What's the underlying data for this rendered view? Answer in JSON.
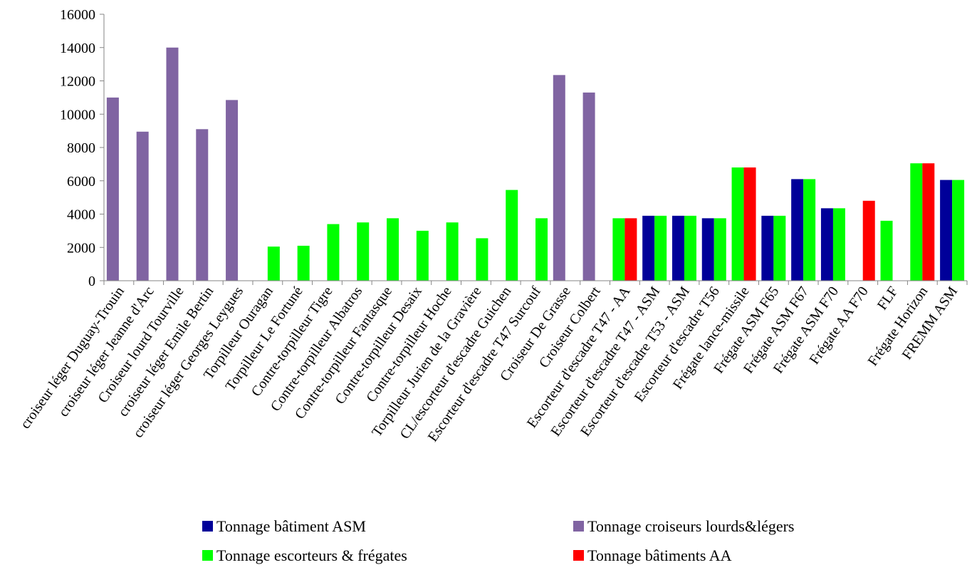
{
  "chart_data": {
    "type": "bar",
    "title": "",
    "xlabel": "",
    "ylabel": "",
    "ylim": [
      0,
      16000
    ],
    "yticks": [
      0,
      2000,
      4000,
      6000,
      8000,
      10000,
      12000,
      14000,
      16000
    ],
    "grid": false,
    "legend_position": "bottom",
    "categories": [
      "croiseur léger Duguay-Trouin",
      "croiseur léger Jeanne d'Arc",
      "Croiseur lourd Tourville",
      "croiseur léger Emile Bertin",
      "croiseur léger Georges Leygues",
      "Torpilleur Ouragan",
      "Torpilleur Le Fortuné",
      "Contre-torpilleur Tigre",
      "Contre-torpilleur Albatros",
      "Contre-torpilleur Fantasque",
      "Contre-torpilleur Desaix",
      "Contre-torpilleur Hoche",
      "Torpilleur Jurien de la Gravière",
      "CL/escorteur d'escadre Guichen",
      "Escorteur d'escadre T47 Surcouf",
      "Croiseur De Grasse",
      "Croiseur Colbert",
      "Escorteur d'escadre T47 - AA",
      "Escorteur d'escadre T47 - ASM",
      "Escorteur d'escadre T53 - ASM",
      "Escorteur d'escadre T56",
      "Frégate lance-missile",
      "Frégate ASM F65",
      "Frégate ASM F67",
      "Frégate ASM F70",
      "Frégate AA F70",
      "FLF",
      "Frégate Horizon",
      "FREMM ASM"
    ],
    "series": [
      {
        "name": "Tonnage croiseurs lourds&légers",
        "color": "#8064A2",
        "values": [
          11000,
          8950,
          14000,
          9100,
          10850,
          null,
          null,
          null,
          null,
          null,
          null,
          null,
          null,
          null,
          null,
          12350,
          11300,
          null,
          null,
          null,
          null,
          null,
          null,
          null,
          null,
          null,
          null,
          null,
          null
        ]
      },
      {
        "name": "Tonnage escorteurs & frégates",
        "color": "#00FF00",
        "values": [
          null,
          null,
          null,
          null,
          null,
          2050,
          2100,
          3400,
          3500,
          3750,
          3000,
          3500,
          2550,
          5450,
          3750,
          null,
          null,
          3750,
          3900,
          3900,
          3750,
          6800,
          3900,
          6100,
          4350,
          null,
          3600,
          7050,
          6050
        ]
      },
      {
        "name": "Tonnage bâtiments AA",
        "color": "#FF0000",
        "values": [
          null,
          null,
          null,
          null,
          null,
          null,
          null,
          null,
          null,
          null,
          null,
          null,
          null,
          null,
          null,
          null,
          null,
          3750,
          null,
          null,
          null,
          6800,
          null,
          null,
          null,
          4800,
          null,
          7050,
          null
        ]
      },
      {
        "name": "Tonnage bâtiment ASM",
        "color": "#000099",
        "values": [
          null,
          null,
          null,
          null,
          null,
          null,
          null,
          null,
          null,
          null,
          null,
          null,
          null,
          null,
          null,
          null,
          null,
          null,
          3900,
          3900,
          3750,
          null,
          3900,
          6100,
          4350,
          null,
          null,
          null,
          6050
        ]
      }
    ],
    "slot_order": [
      [
        "Tonnage croiseurs lourds&légers",
        "Tonnage escorteurs & frégates"
      ],
      [
        "Tonnage croiseurs lourds&légers",
        "Tonnage escorteurs & frégates"
      ],
      [
        "Tonnage croiseurs lourds&légers",
        "Tonnage escorteurs & frégates"
      ],
      [
        "Tonnage croiseurs lourds&légers",
        "Tonnage escorteurs & frégates"
      ],
      [
        "Tonnage croiseurs lourds&légers",
        "Tonnage escorteurs & frégates"
      ],
      [
        "Tonnage croiseurs lourds&légers",
        "Tonnage escorteurs & frégates"
      ],
      [
        "Tonnage croiseurs lourds&légers",
        "Tonnage escorteurs & frégates"
      ],
      [
        "Tonnage croiseurs lourds&légers",
        "Tonnage escorteurs & frégates"
      ],
      [
        "Tonnage croiseurs lourds&légers",
        "Tonnage escorteurs & frégates"
      ],
      [
        "Tonnage croiseurs lourds&légers",
        "Tonnage escorteurs & frégates"
      ],
      [
        "Tonnage croiseurs lourds&légers",
        "Tonnage escorteurs & frégates"
      ],
      [
        "Tonnage croiseurs lourds&légers",
        "Tonnage escorteurs & frégates"
      ],
      [
        "Tonnage croiseurs lourds&légers",
        "Tonnage escorteurs & frégates"
      ],
      [
        "Tonnage croiseurs lourds&légers",
        "Tonnage escorteurs & frégates"
      ],
      [
        "Tonnage croiseurs lourds&légers",
        "Tonnage escorteurs & frégates"
      ],
      [
        "Tonnage croiseurs lourds&légers",
        "Tonnage escorteurs & frégates"
      ],
      [
        "Tonnage croiseurs lourds&légers",
        "Tonnage escorteurs & frégates"
      ],
      [
        "Tonnage escorteurs & frégates",
        "Tonnage bâtiments AA"
      ],
      [
        "Tonnage bâtiment ASM",
        "Tonnage escorteurs & frégates"
      ],
      [
        "Tonnage bâtiment ASM",
        "Tonnage escorteurs & frégates"
      ],
      [
        "Tonnage bâtiment ASM",
        "Tonnage escorteurs & frégates"
      ],
      [
        "Tonnage escorteurs & frégates",
        "Tonnage bâtiments AA"
      ],
      [
        "Tonnage bâtiment ASM",
        "Tonnage escorteurs & frégates"
      ],
      [
        "Tonnage bâtiment ASM",
        "Tonnage escorteurs & frégates"
      ],
      [
        "Tonnage bâtiment ASM",
        "Tonnage escorteurs & frégates"
      ],
      [
        "Tonnage escorteurs & frégates",
        "Tonnage bâtiments AA"
      ],
      [
        "Tonnage escorteurs & frégates",
        "Tonnage bâtiments AA"
      ],
      [
        "Tonnage escorteurs & frégates",
        "Tonnage bâtiments AA"
      ],
      [
        "Tonnage bâtiment ASM",
        "Tonnage escorteurs & frégates"
      ]
    ],
    "legend": [
      {
        "label": "Tonnage bâtiment ASM",
        "color": "#000099"
      },
      {
        "label": "Tonnage croiseurs lourds&légers",
        "color": "#8064A2"
      },
      {
        "label": "Tonnage escorteurs & frégates",
        "color": "#00FF00"
      },
      {
        "label": "Tonnage bâtiments AA",
        "color": "#FF0000"
      }
    ]
  }
}
